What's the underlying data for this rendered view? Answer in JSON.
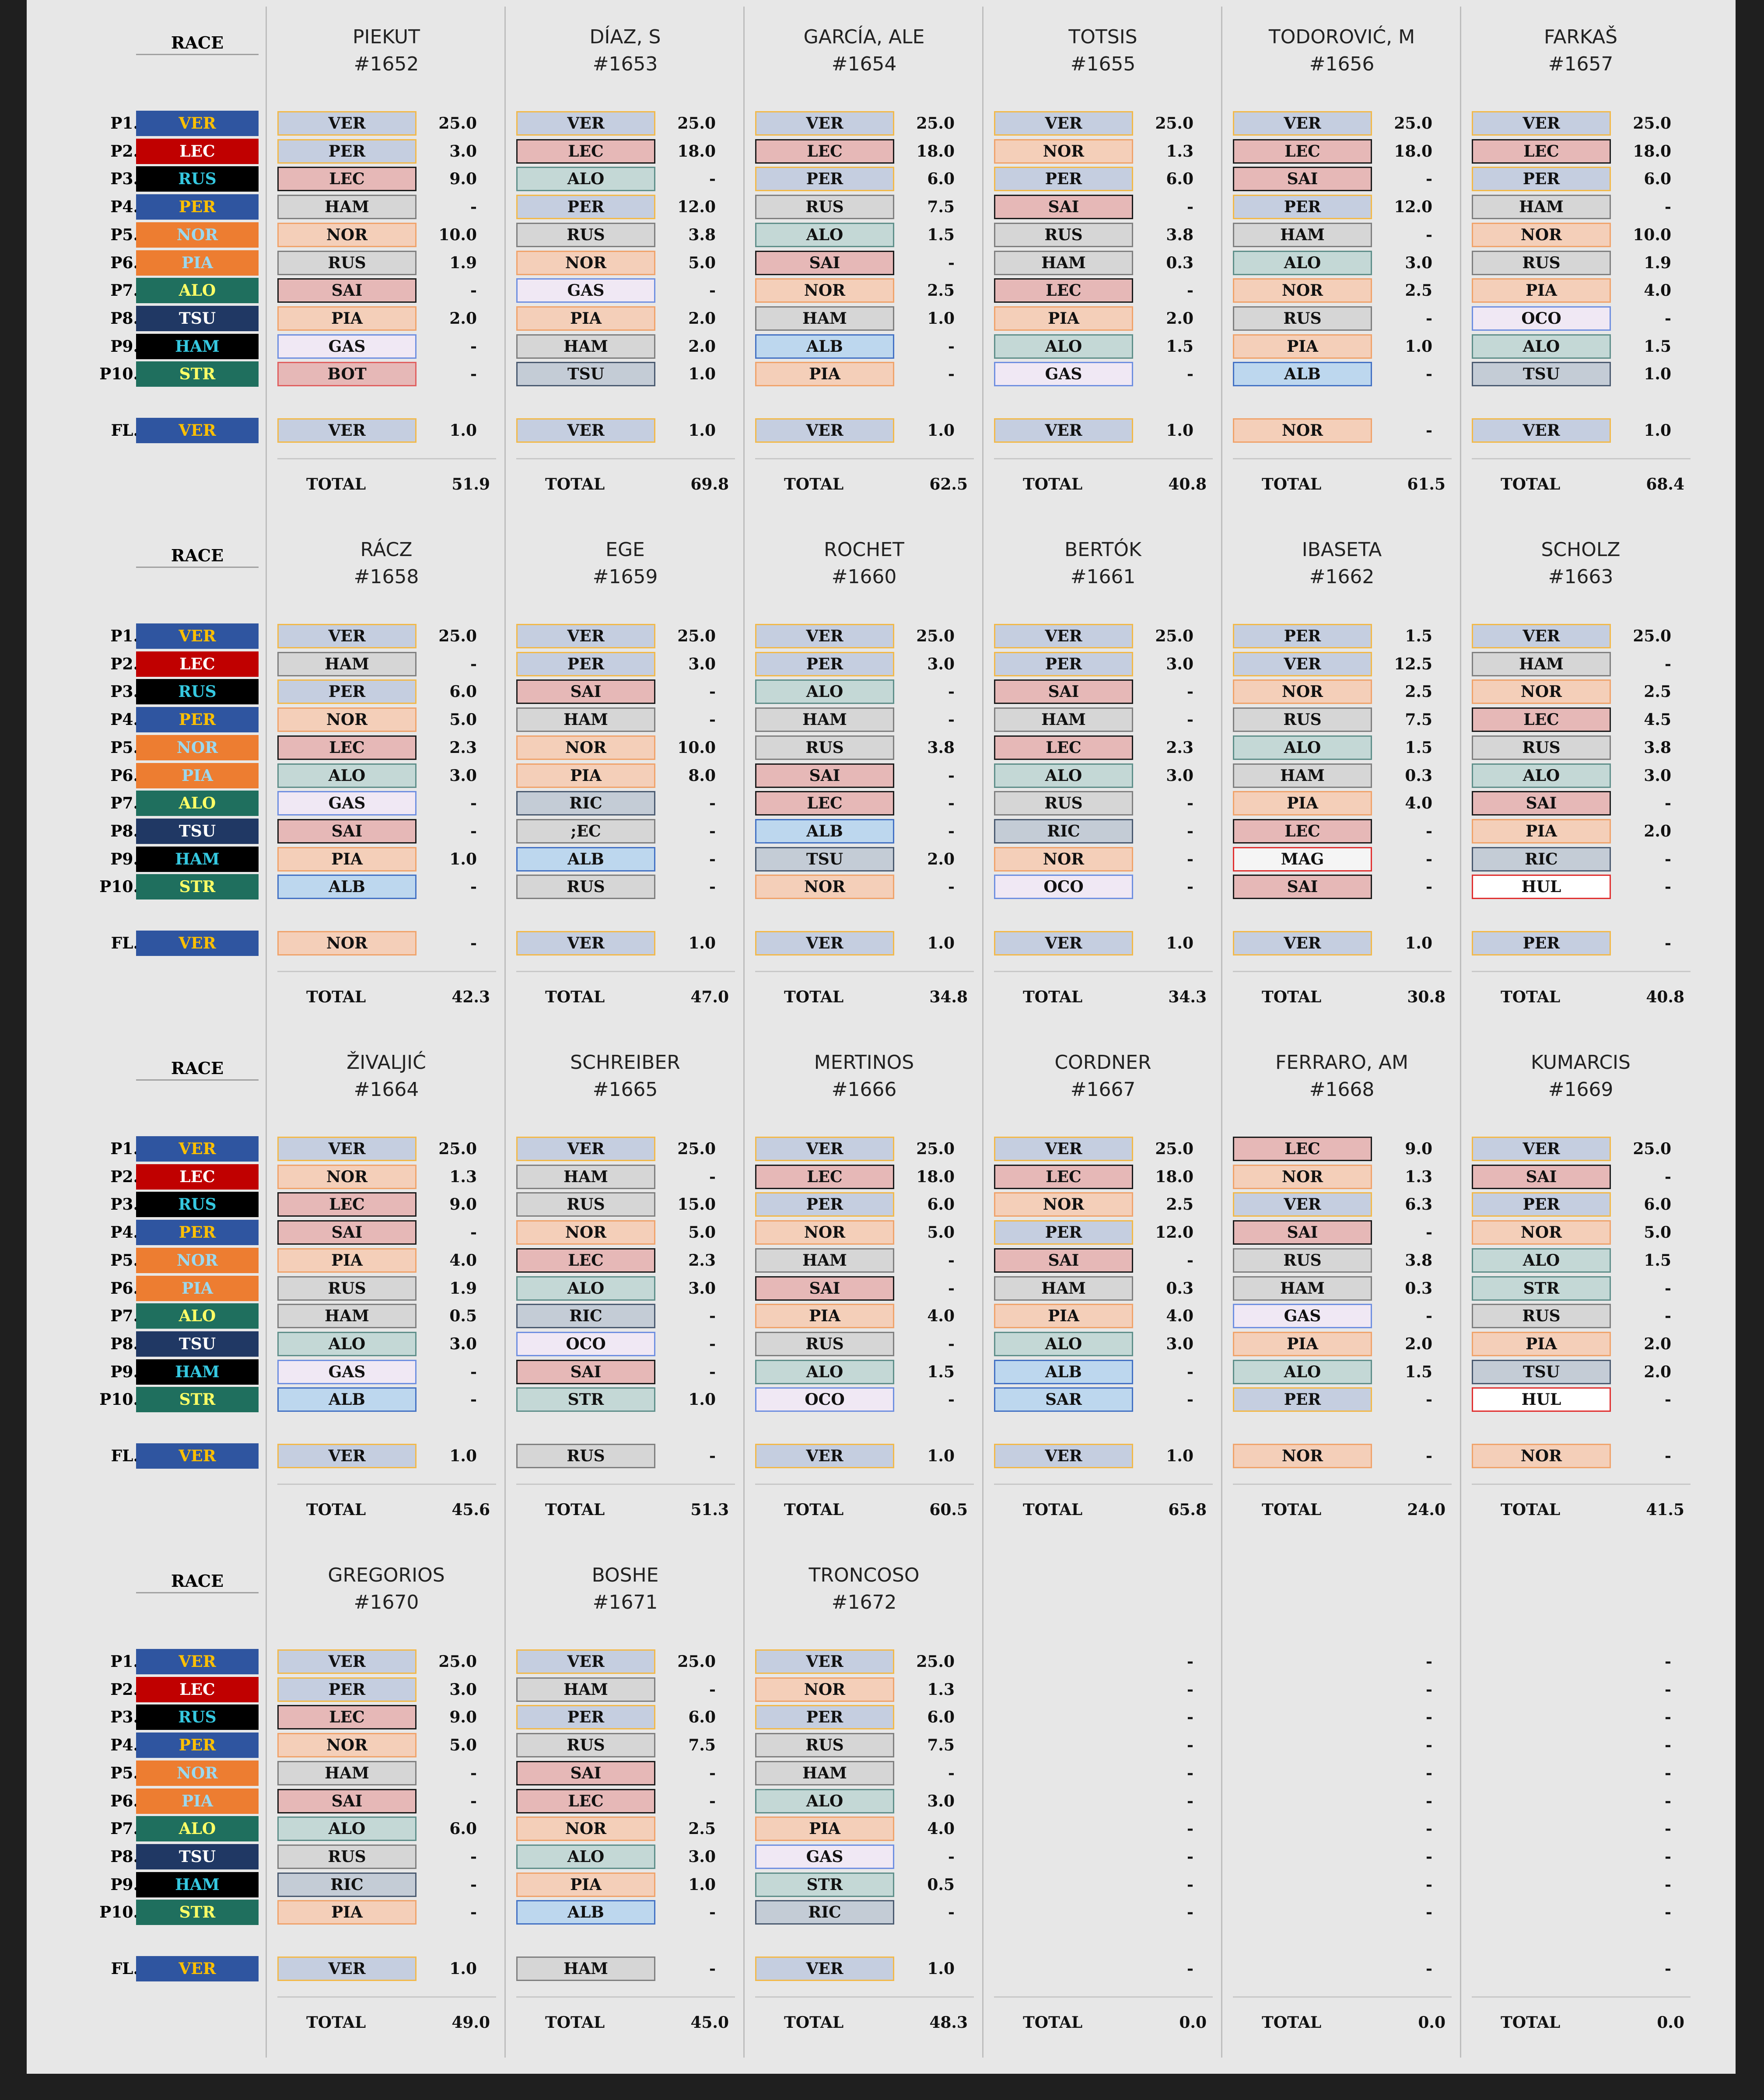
{
  "race": {
    "header": "RACE",
    "positions": [
      "P1.",
      "P2.",
      "P3.",
      "P4.",
      "P5.",
      "P6.",
      "P7.",
      "P8.",
      "P9.",
      "P10."
    ],
    "fl_label": "FL.",
    "drivers": [
      "VER",
      "LEC",
      "RUS",
      "PER",
      "NOR",
      "PIA",
      "ALO",
      "TSU",
      "HAM",
      "STR"
    ],
    "fl_driver": "VER"
  },
  "team_style": {
    "VER": {
      "bg": "#2f55a0",
      "fg": "#ffc000"
    },
    "LEC": {
      "bg": "#c00000",
      "fg": "#ffffff"
    },
    "RUS": {
      "bg": "#000000",
      "fg": "#35c8e0"
    },
    "PER": {
      "bg": "#2f55a0",
      "fg": "#ffc000"
    },
    "NOR": {
      "bg": "#ed7d31",
      "fg": "#9ad8ef"
    },
    "PIA": {
      "bg": "#ed7d31",
      "fg": "#9ad8ef"
    },
    "ALO": {
      "bg": "#1f6f5e",
      "fg": "#ffff66"
    },
    "TSU": {
      "bg": "#203864",
      "fg": "#ffffff"
    },
    "HAM": {
      "bg": "#000000",
      "fg": "#35c8e0"
    },
    "STR": {
      "bg": "#1f6f5e",
      "fg": "#ffff66"
    }
  },
  "pick_style": {
    "VER": {
      "bg": "#c5cee0",
      "border": "#f2b94a"
    },
    "PER": {
      "bg": "#c5cee0",
      "border": "#f2b94a"
    },
    "LEC": {
      "bg": "#e6b8b7",
      "border": "#1a1a1a"
    },
    "SAI": {
      "bg": "#e6b8b7",
      "border": "#1a1a1a"
    },
    "HAM": {
      "bg": "#d6d6d6",
      "border": "#7f7f7f"
    },
    "RUS": {
      "bg": "#d6d6d6",
      "border": "#7f7f7f"
    },
    "NOR": {
      "bg": "#f4cfb9",
      "border": "#f0a36b"
    },
    "PIA": {
      "bg": "#f4cfb9",
      "border": "#f0a36b"
    },
    "ALO": {
      "bg": "#c4d8d6",
      "border": "#5f8f8a"
    },
    "STR": {
      "bg": "#c4d8d6",
      "border": "#5f8f8a"
    },
    "GAS": {
      "bg": "#f0e8f4",
      "border": "#6f8fe0"
    },
    "OCO": {
      "bg": "#f0e8f4",
      "border": "#6f8fe0"
    },
    "ALB": {
      "bg": "#bdd7ee",
      "border": "#4472c4"
    },
    "SAR": {
      "bg": "#bdd7ee",
      "border": "#4472c4"
    },
    "TSU": {
      "bg": "#c4ccd6",
      "border": "#4a5a70"
    },
    "RIC": {
      "bg": "#c4ccd6",
      "border": "#4a5a70"
    },
    "BOT": {
      "bg": "#e6b8b7",
      "border": "#e06060"
    },
    "HUL": {
      "bg": "#ffffff",
      "border": "#e03030"
    },
    "MAG": {
      "bg": "#f5f5f5",
      "border": "#e03030"
    },
    ";EC": {
      "bg": "#d6d6d6",
      "border": "#7f7f7f"
    }
  },
  "total_label": "TOTAL",
  "participants": [
    {
      "name": "PIEKUT",
      "number": "#1652",
      "picks": [
        "VER",
        "PER",
        "LEC",
        "HAM",
        "NOR",
        "RUS",
        "SAI",
        "PIA",
        "GAS",
        "BOT"
      ],
      "points": [
        "25.0",
        "3.0",
        "9.0",
        "-",
        "10.0",
        "1.9",
        "-",
        "2.0",
        "-",
        "-"
      ],
      "fl": "VER",
      "fl_points": "1.0",
      "total": "51.9"
    },
    {
      "name": "DÍAZ, S",
      "number": "#1653",
      "picks": [
        "VER",
        "LEC",
        "ALO",
        "PER",
        "RUS",
        "NOR",
        "GAS",
        "PIA",
        "HAM",
        "TSU"
      ],
      "points": [
        "25.0",
        "18.0",
        "-",
        "12.0",
        "3.8",
        "5.0",
        "-",
        "2.0",
        "2.0",
        "1.0"
      ],
      "fl": "VER",
      "fl_points": "1.0",
      "total": "69.8"
    },
    {
      "name": "GARCÍA, ALE",
      "number": "#1654",
      "picks": [
        "VER",
        "LEC",
        "PER",
        "RUS",
        "ALO",
        "SAI",
        "NOR",
        "HAM",
        "ALB",
        "PIA"
      ],
      "points": [
        "25.0",
        "18.0",
        "6.0",
        "7.5",
        "1.5",
        "-",
        "2.5",
        "1.0",
        "-",
        "-"
      ],
      "fl": "VER",
      "fl_points": "1.0",
      "total": "62.5"
    },
    {
      "name": "TOTSIS",
      "number": "#1655",
      "picks": [
        "VER",
        "NOR",
        "PER",
        "SAI",
        "RUS",
        "HAM",
        "LEC",
        "PIA",
        "ALO",
        "GAS"
      ],
      "points": [
        "25.0",
        "1.3",
        "6.0",
        "-",
        "3.8",
        "0.3",
        "-",
        "2.0",
        "1.5",
        "-"
      ],
      "fl": "VER",
      "fl_points": "1.0",
      "total": "40.8"
    },
    {
      "name": "TODOROVIĆ, M",
      "number": "#1656",
      "picks": [
        "VER",
        "LEC",
        "SAI",
        "PER",
        "HAM",
        "ALO",
        "NOR",
        "RUS",
        "PIA",
        "ALB"
      ],
      "points": [
        "25.0",
        "18.0",
        "-",
        "12.0",
        "-",
        "3.0",
        "2.5",
        "-",
        "1.0",
        "-"
      ],
      "fl": "NOR",
      "fl_points": "-",
      "total": "61.5"
    },
    {
      "name": "FARKAŠ",
      "number": "#1657",
      "picks": [
        "VER",
        "LEC",
        "PER",
        "HAM",
        "NOR",
        "RUS",
        "PIA",
        "OCO",
        "ALO",
        "TSU"
      ],
      "points": [
        "25.0",
        "18.0",
        "6.0",
        "-",
        "10.0",
        "1.9",
        "4.0",
        "-",
        "1.5",
        "1.0"
      ],
      "fl": "VER",
      "fl_points": "1.0",
      "total": "68.4"
    },
    {
      "name": "RÁCZ",
      "number": "#1658",
      "picks": [
        "VER",
        "HAM",
        "PER",
        "NOR",
        "LEC",
        "ALO",
        "GAS",
        "SAI",
        "PIA",
        "ALB"
      ],
      "points": [
        "25.0",
        "-",
        "6.0",
        "5.0",
        "2.3",
        "3.0",
        "-",
        "-",
        "1.0",
        "-"
      ],
      "fl": "NOR",
      "fl_points": "-",
      "total": "42.3"
    },
    {
      "name": "EGE",
      "number": "#1659",
      "picks": [
        "VER",
        "PER",
        "SAI",
        "HAM",
        "NOR",
        "PIA",
        "RIC",
        ";EC",
        "ALB",
        "RUS"
      ],
      "points": [
        "25.0",
        "3.0",
        "-",
        "-",
        "10.0",
        "8.0",
        "-",
        "-",
        "-",
        "-"
      ],
      "fl": "VER",
      "fl_points": "1.0",
      "total": "47.0"
    },
    {
      "name": "ROCHET",
      "number": "#1660",
      "picks": [
        "VER",
        "PER",
        "ALO",
        "HAM",
        "RUS",
        "SAI",
        "LEC",
        "ALB",
        "TSU",
        "NOR"
      ],
      "points": [
        "25.0",
        "3.0",
        "-",
        "-",
        "3.8",
        "-",
        "-",
        "-",
        "2.0",
        "-"
      ],
      "fl": "VER",
      "fl_points": "1.0",
      "total": "34.8"
    },
    {
      "name": "BERTÓK",
      "number": "#1661",
      "picks": [
        "VER",
        "PER",
        "SAI",
        "HAM",
        "LEC",
        "ALO",
        "RUS",
        "RIC",
        "NOR",
        "OCO"
      ],
      "points": [
        "25.0",
        "3.0",
        "-",
        "-",
        "2.3",
        "3.0",
        "-",
        "-",
        "-",
        "-"
      ],
      "fl": "VER",
      "fl_points": "1.0",
      "total": "34.3"
    },
    {
      "name": "IBASETA",
      "number": "#1662",
      "picks": [
        "PER",
        "VER",
        "NOR",
        "RUS",
        "ALO",
        "HAM",
        "PIA",
        "LEC",
        "MAG",
        "SAI"
      ],
      "points": [
        "1.5",
        "12.5",
        "2.5",
        "7.5",
        "1.5",
        "0.3",
        "4.0",
        "-",
        "-",
        "-"
      ],
      "fl": "VER",
      "fl_points": "1.0",
      "total": "30.8"
    },
    {
      "name": "SCHOLZ",
      "number": "#1663",
      "picks": [
        "VER",
        "HAM",
        "NOR",
        "LEC",
        "RUS",
        "ALO",
        "SAI",
        "PIA",
        "RIC",
        "HUL"
      ],
      "points": [
        "25.0",
        "-",
        "2.5",
        "4.5",
        "3.8",
        "3.0",
        "-",
        "2.0",
        "-",
        "-"
      ],
      "fl": "PER",
      "fl_points": "-",
      "total": "40.8"
    },
    {
      "name": "ŽIVALJIĆ",
      "number": "#1664",
      "picks": [
        "VER",
        "NOR",
        "LEC",
        "SAI",
        "PIA",
        "RUS",
        "HAM",
        "ALO",
        "GAS",
        "ALB"
      ],
      "points": [
        "25.0",
        "1.3",
        "9.0",
        "-",
        "4.0",
        "1.9",
        "0.5",
        "3.0",
        "-",
        "-"
      ],
      "fl": "VER",
      "fl_points": "1.0",
      "total": "45.6"
    },
    {
      "name": "SCHREIBER",
      "number": "#1665",
      "picks": [
        "VER",
        "HAM",
        "RUS",
        "NOR",
        "LEC",
        "ALO",
        "RIC",
        "OCO",
        "SAI",
        "STR"
      ],
      "points": [
        "25.0",
        "-",
        "15.0",
        "5.0",
        "2.3",
        "3.0",
        "-",
        "-",
        "-",
        "1.0"
      ],
      "fl": "RUS",
      "fl_points": "-",
      "total": "51.3"
    },
    {
      "name": "MERTINOS",
      "number": "#1666",
      "picks": [
        "VER",
        "LEC",
        "PER",
        "NOR",
        "HAM",
        "SAI",
        "PIA",
        "RUS",
        "ALO",
        "OCO"
      ],
      "points": [
        "25.0",
        "18.0",
        "6.0",
        "5.0",
        "-",
        "-",
        "4.0",
        "-",
        "1.5",
        "-"
      ],
      "fl": "VER",
      "fl_points": "1.0",
      "total": "60.5"
    },
    {
      "name": "CORDNER",
      "number": "#1667",
      "picks": [
        "VER",
        "LEC",
        "NOR",
        "PER",
        "SAI",
        "HAM",
        "PIA",
        "ALO",
        "ALB",
        "SAR"
      ],
      "points": [
        "25.0",
        "18.0",
        "2.5",
        "12.0",
        "-",
        "0.3",
        "4.0",
        "3.0",
        "-",
        "-"
      ],
      "fl": "VER",
      "fl_points": "1.0",
      "total": "65.8"
    },
    {
      "name": "FERRARO, AM",
      "number": "#1668",
      "picks": [
        "LEC",
        "NOR",
        "VER",
        "SAI",
        "RUS",
        "HAM",
        "GAS",
        "PIA",
        "ALO",
        "PER"
      ],
      "points": [
        "9.0",
        "1.3",
        "6.3",
        "-",
        "3.8",
        "0.3",
        "-",
        "2.0",
        "1.5",
        "-"
      ],
      "fl": "NOR",
      "fl_points": "-",
      "total": "24.0"
    },
    {
      "name": "KUMARCIS",
      "number": "#1669",
      "picks": [
        "VER",
        "SAI",
        "PER",
        "NOR",
        "ALO",
        "STR",
        "RUS",
        "PIA",
        "TSU",
        "HUL"
      ],
      "points": [
        "25.0",
        "-",
        "6.0",
        "5.0",
        "1.5",
        "-",
        "-",
        "2.0",
        "2.0",
        "-"
      ],
      "fl": "NOR",
      "fl_points": "-",
      "total": "41.5"
    },
    {
      "name": "GREGORIOS",
      "number": "#1670",
      "picks": [
        "VER",
        "PER",
        "LEC",
        "NOR",
        "HAM",
        "SAI",
        "ALO",
        "RUS",
        "RIC",
        "PIA"
      ],
      "points": [
        "25.0",
        "3.0",
        "9.0",
        "5.0",
        "-",
        "-",
        "6.0",
        "-",
        "-",
        "-"
      ],
      "fl": "VER",
      "fl_points": "1.0",
      "total": "49.0"
    },
    {
      "name": "BOSHE",
      "number": "#1671",
      "picks": [
        "VER",
        "HAM",
        "PER",
        "RUS",
        "SAI",
        "LEC",
        "NOR",
        "ALO",
        "PIA",
        "ALB"
      ],
      "points": [
        "25.0",
        "-",
        "6.0",
        "7.5",
        "-",
        "-",
        "2.5",
        "3.0",
        "1.0",
        "-"
      ],
      "fl": "HAM",
      "fl_points": "-",
      "total": "45.0"
    },
    {
      "name": "TRONCOSO",
      "number": "#1672",
      "picks": [
        "VER",
        "NOR",
        "PER",
        "RUS",
        "HAM",
        "ALO",
        "PIA",
        "GAS",
        "STR",
        "RIC"
      ],
      "points": [
        "25.0",
        "1.3",
        "6.0",
        "7.5",
        "-",
        "3.0",
        "4.0",
        "-",
        "0.5",
        "-"
      ],
      "fl": "VER",
      "fl_points": "1.0",
      "total": "48.3"
    },
    {
      "name": "",
      "number": "",
      "picks": [
        "",
        "",
        "",
        "",
        "",
        "",
        "",
        "",
        "",
        ""
      ],
      "points": [
        "-",
        "-",
        "-",
        "-",
        "-",
        "-",
        "-",
        "-",
        "-",
        "-"
      ],
      "fl": "",
      "fl_points": "-",
      "total": "0.0"
    },
    {
      "name": "",
      "number": "",
      "picks": [
        "",
        "",
        "",
        "",
        "",
        "",
        "",
        "",
        "",
        ""
      ],
      "points": [
        "-",
        "-",
        "-",
        "-",
        "-",
        "-",
        "-",
        "-",
        "-",
        "-"
      ],
      "fl": "",
      "fl_points": "-",
      "total": "0.0"
    },
    {
      "name": "",
      "number": "",
      "picks": [
        "",
        "",
        "",
        "",
        "",
        "",
        "",
        "",
        "",
        ""
      ],
      "points": [
        "-",
        "-",
        "-",
        "-",
        "-",
        "-",
        "-",
        "-",
        "-",
        "-"
      ],
      "fl": "",
      "fl_points": "-",
      "total": "0.0"
    }
  ]
}
